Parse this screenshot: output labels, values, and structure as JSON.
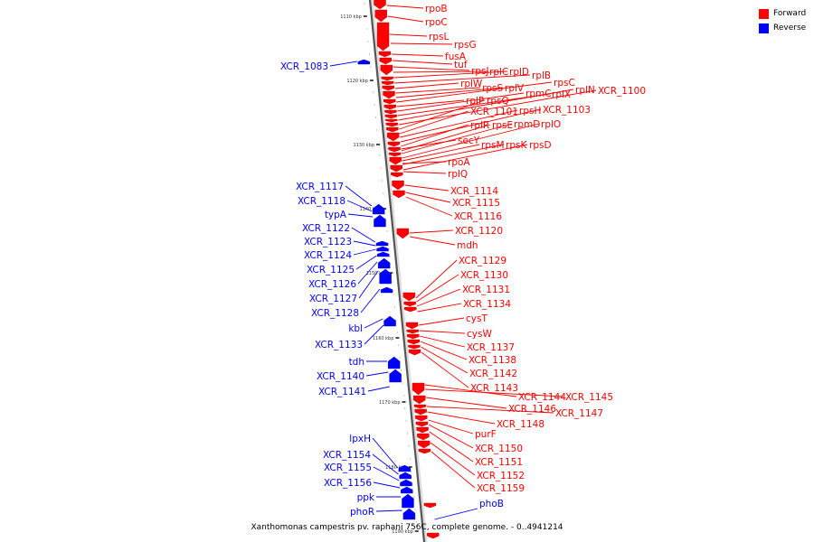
{
  "legend": {
    "forward": {
      "label": "Forward",
      "color": "#ff0000"
    },
    "reverse": {
      "label": "Reverse",
      "color": "#0000ff"
    }
  },
  "caption": "Xanthomonas campestris pv. raphani 756C, complete genome. - 0..4941214",
  "scale_ticks": [
    "1110 kbp",
    "1120 kbp",
    "1130 kbp",
    "1140 kbp",
    "1150 kbp",
    "1160 kbp",
    "1170 kbp",
    "1180 kbp",
    "1190 kbp"
  ],
  "forward_labels": [
    "rpoB",
    "rpoC",
    "rpsL",
    "rpsG",
    "fusA",
    "tuf",
    "rpsJ",
    "rplC",
    "rplD",
    "rplB",
    "rplW",
    "rpsS",
    "rplV",
    "rpsC",
    "rplP",
    "rpmC",
    "rplX",
    "rplN",
    "XCR_1100",
    "rpsQ",
    "XCR_1101",
    "rpsH",
    "XCR_1103",
    "rplR",
    "rpsE",
    "rpmD",
    "rplO",
    "secY",
    "rpsM",
    "rpsK",
    "rpsD",
    "rpoA",
    "rplQ",
    "XCR_1114",
    "XCR_1115",
    "XCR_1116",
    "XCR_1120",
    "mdh",
    "XCR_1129",
    "XCR_1130",
    "XCR_1131",
    "XCR_1134",
    "cysT",
    "cysW",
    "XCR_1137",
    "XCR_1138",
    "XCR_1142",
    "XCR_1143",
    "XCR_1144",
    "XCR_1145",
    "XCR_1146",
    "XCR_1147",
    "XCR_1148",
    "purF",
    "XCR_1150",
    "XCR_1151",
    "XCR_1152",
    "XCR_1159"
  ],
  "reverse_labels": [
    "XCR_1083",
    "XCR_1117",
    "XCR_1118",
    "typA",
    "XCR_1122",
    "XCR_1123",
    "XCR_1124",
    "XCR_1125",
    "XCR_1126",
    "XCR_1127",
    "XCR_1128",
    "kbl",
    "XCR_1133",
    "tdh",
    "XCR_1140",
    "XCR_1141",
    "lpxH",
    "XCR_1154",
    "XCR_1155",
    "XCR_1156",
    "ppk",
    "phoR",
    "phoB"
  ]
}
